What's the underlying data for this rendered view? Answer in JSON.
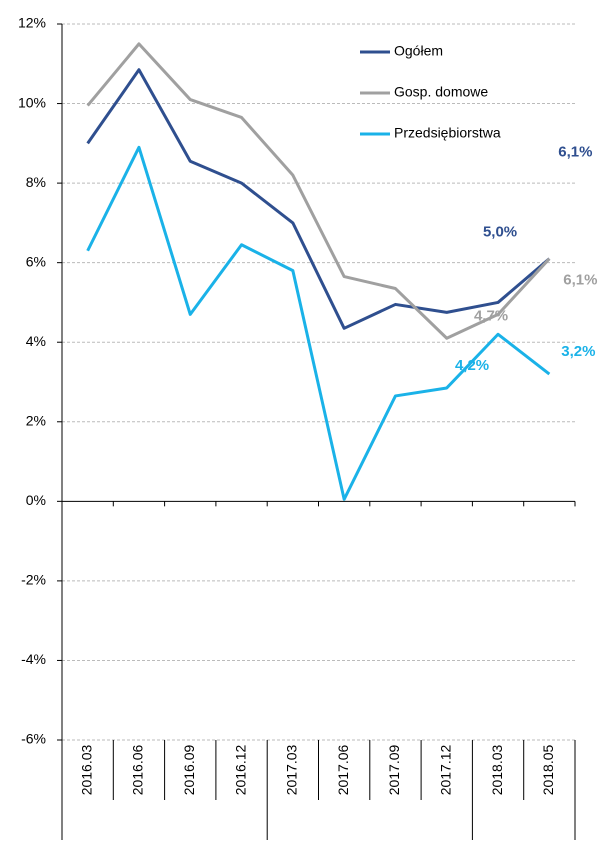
{
  "chart_data": {
    "type": "line",
    "categories": [
      "2016.03",
      "2016.06",
      "2016.09",
      "2016.12",
      "2017.03",
      "2017.06",
      "2017.09",
      "2017.12",
      "2018.03",
      "2018.05"
    ],
    "series": [
      {
        "name": "Ogółem",
        "color": "#2f4f8f",
        "values": [
          9.0,
          10.85,
          8.55,
          8.0,
          7.0,
          4.35,
          4.95,
          4.75,
          5.0,
          6.1
        ],
        "value_labels": [
          null,
          null,
          null,
          null,
          null,
          null,
          null,
          null,
          "5,0%",
          "6,1%"
        ]
      },
      {
        "name": "Gosp. domowe",
        "color": "#a0a0a0",
        "values": [
          9.95,
          11.5,
          10.1,
          9.65,
          8.2,
          5.65,
          5.35,
          4.1,
          4.7,
          6.1
        ],
        "value_labels": [
          null,
          null,
          null,
          null,
          null,
          null,
          null,
          null,
          "4,7%",
          "6,1%"
        ]
      },
      {
        "name": "Przedsiębiorstwa",
        "color": "#1ab2e8",
        "values": [
          6.3,
          8.9,
          4.7,
          6.45,
          5.8,
          0.05,
          2.65,
          2.85,
          4.2,
          3.2
        ],
        "value_labels": [
          null,
          null,
          null,
          null,
          null,
          null,
          null,
          null,
          "4,2%",
          "3,2%"
        ]
      }
    ],
    "ylim": [
      -6,
      12
    ],
    "yticks": [
      {
        "value": -6,
        "label": "-6%"
      },
      {
        "value": -4,
        "label": "-4%"
      },
      {
        "value": -2,
        "label": "-2%"
      },
      {
        "value": 0,
        "label": "0%"
      },
      {
        "value": 2,
        "label": "2%"
      },
      {
        "value": 4,
        "label": "4%"
      },
      {
        "value": 6,
        "label": "6%"
      },
      {
        "value": 8,
        "label": "8%"
      },
      {
        "value": 10,
        "label": "10%"
      },
      {
        "value": 12,
        "label": "12%"
      }
    ],
    "grid": true
  }
}
